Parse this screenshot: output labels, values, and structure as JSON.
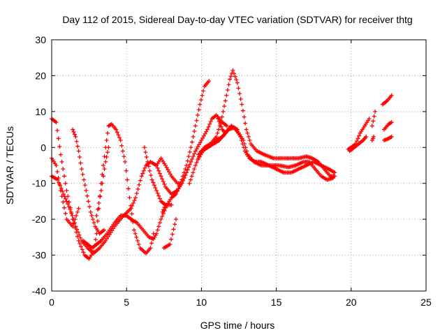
{
  "chart_data": {
    "type": "scatter",
    "title": "Day 112 of 2015, Sidereal Day-to-day VTEC variation (SDTVAR) for receiver thtg",
    "xlabel": "GPS time / hours",
    "ylabel": "SDTVAR / TECUs",
    "xlim": [
      0,
      25
    ],
    "ylim": [
      -40,
      30
    ],
    "xticks": [
      0,
      5,
      10,
      15,
      20,
      25
    ],
    "yticks": [
      -40,
      -30,
      -20,
      -10,
      0,
      10,
      20,
      30
    ],
    "grid": true,
    "marker": "+",
    "color": "#ff0000",
    "series": [
      {
        "name": "track-1",
        "points": [
          [
            0.0,
            8
          ],
          [
            0.3,
            7
          ],
          [
            0.6,
            -2
          ],
          [
            1.0,
            -12
          ],
          [
            1.4,
            -20
          ],
          [
            1.8,
            -26
          ],
          [
            2.2,
            -30
          ],
          [
            2.5,
            -31
          ],
          [
            2.8,
            -29
          ],
          [
            3.0,
            -24
          ],
          [
            3.3,
            -10
          ],
          [
            3.6,
            0
          ],
          [
            3.8,
            6
          ],
          [
            4.0,
            6.5
          ],
          [
            4.3,
            5
          ],
          [
            4.6,
            2
          ],
          [
            4.9,
            -4
          ],
          [
            5.2,
            -14
          ],
          [
            5.5,
            -23
          ],
          [
            5.9,
            -28
          ],
          [
            6.3,
            -29.5
          ],
          [
            6.6,
            -28
          ],
          [
            6.8,
            -24
          ]
        ]
      },
      {
        "name": "track-2",
        "points": [
          [
            0.0,
            -3
          ],
          [
            0.3,
            -5
          ],
          [
            0.6,
            -12
          ],
          [
            1.0,
            -20
          ],
          [
            1.4,
            -22
          ],
          [
            1.8,
            -17
          ]
        ]
      },
      {
        "name": "track-3",
        "points": [
          [
            0.0,
            -8
          ],
          [
            0.4,
            -9
          ],
          [
            0.8,
            -13
          ],
          [
            1.0,
            -15
          ],
          [
            1.3,
            -18
          ],
          [
            1.6,
            -22
          ],
          [
            2.0,
            -26
          ],
          [
            2.4,
            -28
          ],
          [
            2.8,
            -29.5
          ],
          [
            3.2,
            -28
          ],
          [
            3.6,
            -26
          ],
          [
            4.2,
            -22
          ],
          [
            4.8,
            -19
          ],
          [
            5.3,
            -17
          ],
          [
            5.6,
            -14
          ],
          [
            6.0,
            -8
          ],
          [
            6.3,
            -5
          ],
          [
            6.6,
            -4
          ],
          [
            7.0,
            -5
          ],
          [
            7.3,
            -8
          ],
          [
            7.6,
            -11
          ],
          [
            8.0,
            -13
          ],
          [
            8.4,
            -12
          ],
          [
            8.7,
            -10
          ],
          [
            9.0,
            -7
          ],
          [
            9.3,
            -4
          ],
          [
            9.6,
            -1
          ],
          [
            10.0,
            2
          ],
          [
            10.4,
            5
          ],
          [
            10.7,
            8
          ],
          [
            11.0,
            9
          ],
          [
            11.4,
            7
          ],
          [
            11.7,
            6
          ]
        ]
      },
      {
        "name": "track-4",
        "points": [
          [
            1.4,
            5
          ],
          [
            1.6,
            3
          ],
          [
            1.8,
            -1
          ],
          [
            2.0,
            -6
          ],
          [
            2.3,
            -12
          ],
          [
            2.6,
            -18
          ],
          [
            2.9,
            -22
          ],
          [
            3.2,
            -24
          ],
          [
            3.5,
            -23
          ]
        ]
      },
      {
        "name": "track-5",
        "points": [
          [
            2.1,
            -26
          ],
          [
            2.4,
            -27
          ],
          [
            2.7,
            -28
          ],
          [
            3.0,
            -27
          ],
          [
            3.3,
            -26
          ],
          [
            3.7,
            -24
          ],
          [
            4.2,
            -21
          ],
          [
            4.6,
            -19
          ],
          [
            5.0,
            -19
          ],
          [
            5.3,
            -20
          ],
          [
            5.7,
            -21
          ],
          [
            6.1,
            -23
          ],
          [
            6.5,
            -25
          ],
          [
            6.8,
            -25.5
          ],
          [
            7.0,
            -24
          ],
          [
            7.3,
            -20
          ],
          [
            7.7,
            -16
          ],
          [
            8.0,
            -14
          ],
          [
            8.3,
            -13
          ],
          [
            8.6,
            -10
          ],
          [
            9.0,
            -5
          ],
          [
            9.3,
            0
          ],
          [
            9.6,
            6
          ],
          [
            9.9,
            12
          ],
          [
            10.2,
            17
          ],
          [
            10.5,
            18.5
          ]
        ]
      },
      {
        "name": "track-6",
        "points": [
          [
            3.0,
            -19
          ],
          [
            3.3,
            -12
          ],
          [
            3.6,
            -4
          ],
          [
            3.8,
            0
          ]
        ]
      },
      {
        "name": "track-7",
        "points": [
          [
            6.2,
            0
          ],
          [
            6.4,
            -4
          ],
          [
            6.7,
            -9
          ],
          [
            7.0,
            -12
          ],
          [
            7.3,
            -15
          ],
          [
            7.6,
            -16
          ],
          [
            8.0,
            -16
          ]
        ]
      },
      {
        "name": "track-8",
        "points": [
          [
            7.0,
            -5
          ],
          [
            7.3,
            -3
          ],
          [
            7.6,
            -5
          ],
          [
            8.0,
            -8
          ],
          [
            8.4,
            -10
          ],
          [
            8.7,
            -10
          ],
          [
            9.0,
            -7
          ]
        ]
      },
      {
        "name": "track-9",
        "points": [
          [
            7.4,
            -18
          ],
          [
            7.6,
            -16
          ]
        ]
      },
      {
        "name": "track-10",
        "points": [
          [
            7.5,
            -28
          ],
          [
            7.9,
            -27
          ],
          [
            8.3,
            -20
          ]
        ]
      },
      {
        "name": "track-11",
        "points": [
          [
            9.2,
            -10
          ],
          [
            9.6,
            -5
          ],
          [
            10.0,
            -1
          ],
          [
            10.4,
            0
          ],
          [
            10.8,
            1
          ],
          [
            11.2,
            2
          ],
          [
            11.6,
            4
          ],
          [
            11.8,
            5
          ],
          [
            12.0,
            6
          ],
          [
            12.3,
            5
          ],
          [
            12.6,
            3
          ],
          [
            12.9,
            -1
          ],
          [
            13.2,
            -3
          ],
          [
            13.6,
            -4
          ],
          [
            14.0,
            -4
          ],
          [
            14.5,
            -5
          ],
          [
            15.0,
            -6
          ],
          [
            15.5,
            -7
          ],
          [
            16.0,
            -7
          ],
          [
            16.5,
            -6
          ],
          [
            17.0,
            -5
          ],
          [
            17.5,
            -4
          ],
          [
            18.0,
            -5
          ],
          [
            18.5,
            -6
          ],
          [
            18.9,
            -7
          ]
        ]
      },
      {
        "name": "track-12",
        "points": [
          [
            9.8,
            -2
          ],
          [
            10.2,
            0
          ],
          [
            10.6,
            1
          ],
          [
            11.0,
            3
          ],
          [
            11.3,
            7
          ],
          [
            11.6,
            13
          ],
          [
            11.9,
            19
          ],
          [
            12.1,
            21.5
          ],
          [
            12.4,
            18
          ],
          [
            12.7,
            12
          ],
          [
            13.0,
            5
          ],
          [
            13.3,
            1
          ],
          [
            13.7,
            -1
          ],
          [
            14.2,
            -2
          ],
          [
            14.8,
            -3
          ],
          [
            15.4,
            -3
          ],
          [
            16.0,
            -3
          ],
          [
            16.5,
            -3
          ],
          [
            17.0,
            -2.5
          ],
          [
            17.4,
            -3
          ],
          [
            17.8,
            -4
          ],
          [
            18.2,
            -6
          ],
          [
            18.6,
            -8
          ],
          [
            18.9,
            -8
          ]
        ]
      },
      {
        "name": "track-13",
        "points": [
          [
            9.8,
            -3
          ],
          [
            10.2,
            -0.5
          ],
          [
            10.6,
            0.5
          ],
          [
            11.0,
            2
          ],
          [
            11.4,
            3
          ],
          [
            11.8,
            5
          ],
          [
            12.2,
            5.5
          ],
          [
            12.5,
            4
          ],
          [
            12.8,
            2
          ],
          [
            13.1,
            -2
          ],
          [
            13.5,
            -4
          ],
          [
            14.0,
            -5
          ],
          [
            14.6,
            -5
          ],
          [
            15.2,
            -5
          ],
          [
            15.8,
            -5.5
          ],
          [
            16.3,
            -5
          ],
          [
            16.8,
            -4
          ],
          [
            17.2,
            -4
          ],
          [
            17.6,
            -6
          ],
          [
            18.0,
            -8
          ],
          [
            18.4,
            -9
          ],
          [
            18.8,
            -8.5
          ]
        ]
      },
      {
        "name": "track-14",
        "points": [
          [
            11.1,
            8
          ],
          [
            11.4,
            5
          ],
          [
            11.6,
            4
          ],
          [
            12.0,
            6
          ],
          [
            12.4,
            5
          ]
        ]
      },
      {
        "name": "track-15",
        "points": [
          [
            19.8,
            -0.5
          ],
          [
            20.0,
            0
          ],
          [
            20.3,
            1
          ],
          [
            20.6,
            4
          ],
          [
            20.9,
            6
          ],
          [
            21.2,
            8
          ]
        ]
      },
      {
        "name": "track-16",
        "points": [
          [
            19.9,
            -1
          ],
          [
            20.2,
            0
          ],
          [
            20.5,
            1
          ],
          [
            20.8,
            2
          ],
          [
            21.0,
            3
          ]
        ]
      },
      {
        "name": "track-17",
        "points": [
          [
            21.4,
            6
          ],
          [
            21.6,
            10
          ]
        ]
      },
      {
        "name": "track-18",
        "points": [
          [
            21.4,
            2
          ],
          [
            21.5,
            3
          ]
        ]
      },
      {
        "name": "track-19",
        "points": [
          [
            22.1,
            12
          ],
          [
            22.4,
            13
          ],
          [
            22.7,
            14.5
          ]
        ]
      },
      {
        "name": "track-20",
        "points": [
          [
            22.2,
            5
          ],
          [
            22.5,
            6.5
          ],
          [
            22.7,
            7
          ]
        ]
      },
      {
        "name": "track-21",
        "points": [
          [
            22.2,
            2
          ],
          [
            22.5,
            2.5
          ],
          [
            22.7,
            3
          ]
        ]
      }
    ]
  }
}
